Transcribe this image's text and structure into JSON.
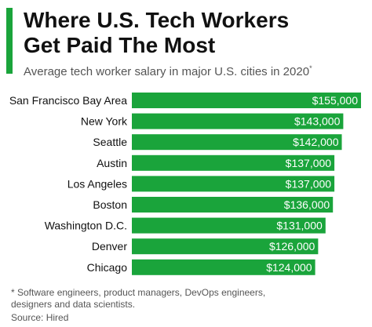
{
  "header": {
    "title": "Where U.S. Tech Workers\nGet Paid The Most",
    "subtitle": "Average tech worker salary in major U.S. cities in 2020",
    "subtitle_marker": "*"
  },
  "footer": {
    "footnote": "* Software engineers, product managers, DevOps engineers,\n   designers and data scientists.",
    "source": "Source: Hired"
  },
  "colors": {
    "bar": "#1aa43b",
    "accent": "#1aa43b",
    "label": "#111111",
    "value_text": "#ffffff"
  },
  "chart_data": {
    "type": "bar",
    "orientation": "horizontal",
    "title": "Where U.S. Tech Workers Get Paid The Most",
    "subtitle": "Average tech worker salary in major U.S. cities in 2020",
    "categories": [
      "San Francisco Bay Area",
      "New York",
      "Seattle",
      "Austin",
      "Los Angeles",
      "Boston",
      "Washington D.C.",
      "Denver",
      "Chicago"
    ],
    "values": [
      155000,
      143000,
      142000,
      137000,
      137000,
      136000,
      131000,
      126000,
      124000
    ],
    "value_labels": [
      "$155,000",
      "$143,000",
      "$142,000",
      "$137,000",
      "$137,000",
      "$136,000",
      "$131,000",
      "$126,000",
      "$124,000"
    ],
    "xlim": [
      0,
      155000
    ],
    "xlabel": "",
    "ylabel": "",
    "grid": false,
    "legend": "none"
  }
}
